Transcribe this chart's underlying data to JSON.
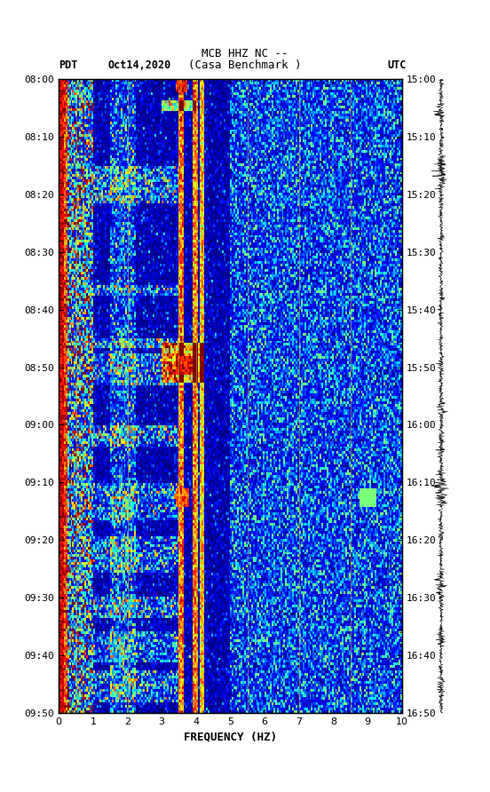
{
  "title_line1": "MCB HHZ NC --",
  "title_line2": "(Casa Benchmark )",
  "label_left_top": "PDT",
  "label_date": "Oct14,2020",
  "label_right_top": "UTC",
  "time_left_start": "08:00",
  "time_left_end": "09:50",
  "time_right_start": "15:00",
  "time_right_end": "16:50",
  "xlabel": "FREQUENCY (HZ)",
  "freq_min": 0,
  "freq_max": 10,
  "time_ticks_left": [
    "08:00",
    "08:10",
    "08:20",
    "08:30",
    "08:40",
    "08:50",
    "09:00",
    "09:10",
    "09:20",
    "09:30",
    "09:40",
    "09:50"
  ],
  "time_ticks_right": [
    "15:00",
    "15:10",
    "15:20",
    "15:30",
    "15:40",
    "15:50",
    "16:00",
    "16:10",
    "16:20",
    "16:30",
    "16:40",
    "16:50"
  ],
  "freq_ticks": [
    0,
    1,
    2,
    3,
    4,
    5,
    6,
    7,
    8,
    9,
    10
  ],
  "vertical_lines": [
    0.5,
    2.0,
    3.5,
    4.0,
    5.5,
    7.0,
    8.5
  ],
  "background_color": "#ffffff",
  "spectrogram_bg": "#000033"
}
